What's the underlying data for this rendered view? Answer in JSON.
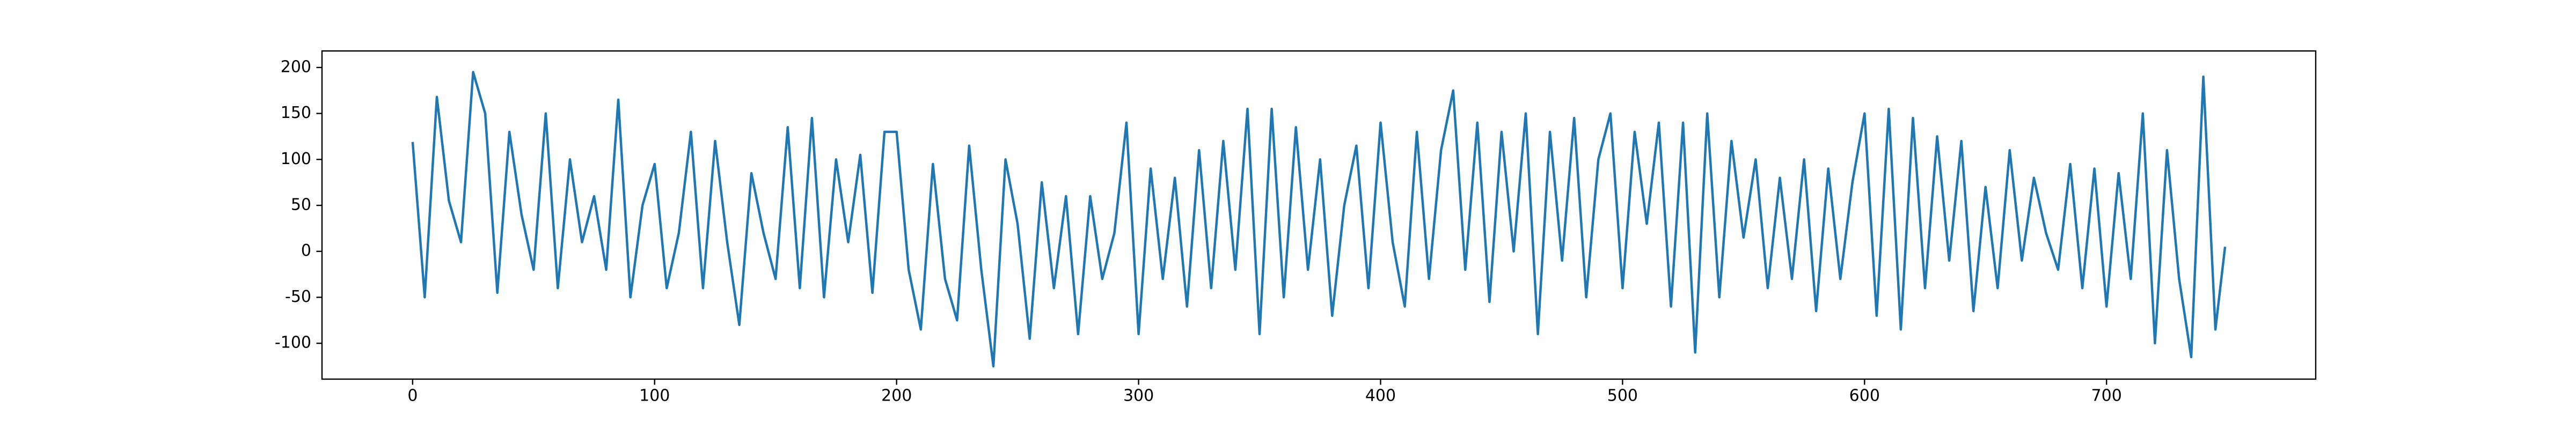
{
  "chart_data": {
    "type": "line",
    "color": "#1f77b4",
    "x": [
      0,
      5,
      10,
      15,
      20,
      25,
      30,
      35,
      40,
      45,
      50,
      55,
      60,
      65,
      70,
      75,
      80,
      85,
      90,
      95,
      100,
      105,
      110,
      115,
      120,
      125,
      130,
      135,
      140,
      145,
      150,
      155,
      160,
      165,
      170,
      175,
      180,
      185,
      190,
      195,
      200,
      205,
      210,
      215,
      220,
      225,
      230,
      235,
      240,
      245,
      250,
      255,
      260,
      265,
      270,
      275,
      280,
      285,
      290,
      295,
      300,
      305,
      310,
      315,
      320,
      325,
      330,
      335,
      340,
      345,
      350,
      355,
      360,
      365,
      370,
      375,
      380,
      385,
      390,
      395,
      400,
      405,
      410,
      415,
      420,
      425,
      430,
      435,
      440,
      445,
      450,
      455,
      460,
      465,
      470,
      475,
      480,
      485,
      490,
      495,
      500,
      505,
      510,
      515,
      520,
      525,
      530,
      535,
      540,
      545,
      550,
      555,
      560,
      565,
      570,
      575,
      580,
      585,
      590,
      595,
      600,
      605,
      610,
      615,
      620,
      625,
      630,
      635,
      640,
      645,
      650,
      655,
      660,
      665,
      670,
      675,
      680,
      685,
      690,
      695,
      700,
      705,
      710,
      715,
      720,
      725,
      730,
      735,
      740,
      745,
      749
    ],
    "values": [
      119,
      -50,
      168,
      55,
      10,
      195,
      150,
      -45,
      130,
      40,
      -20,
      150,
      -40,
      100,
      10,
      60,
      -20,
      165,
      -50,
      50,
      95,
      -40,
      20,
      130,
      -40,
      120,
      10,
      -80,
      85,
      20,
      -30,
      135,
      -40,
      145,
      -50,
      100,
      10,
      105,
      -45,
      130,
      130,
      -20,
      -85,
      95,
      -30,
      -75,
      115,
      -20,
      -125,
      100,
      30,
      -95,
      75,
      -40,
      60,
      -90,
      60,
      -30,
      20,
      140,
      -90,
      90,
      -30,
      80,
      -60,
      110,
      -40,
      120,
      -20,
      155,
      -90,
      155,
      -50,
      135,
      -20,
      100,
      -70,
      50,
      115,
      -40,
      140,
      10,
      -60,
      130,
      -30,
      110,
      175,
      -20,
      140,
      -55,
      130,
      0,
      150,
      -90,
      130,
      -10,
      145,
      -50,
      100,
      150,
      -40,
      130,
      30,
      140,
      -60,
      140,
      -110,
      150,
      -50,
      120,
      15,
      100,
      -40,
      80,
      -30,
      100,
      -65,
      90,
      -30,
      75,
      150,
      -70,
      155,
      -85,
      145,
      -40,
      125,
      -10,
      120,
      -65,
      70,
      -40,
      110,
      -10,
      80,
      20,
      -20,
      95,
      -40,
      90,
      -60,
      85,
      -30,
      150,
      -100,
      110,
      -30,
      -115,
      190,
      -85,
      5
    ],
    "xlim": [
      -37.45,
      786.45
    ],
    "ylim": [
      -139,
      218
    ],
    "xticks": [
      0,
      100,
      200,
      300,
      400,
      500,
      600,
      700
    ],
    "yticks": [
      -100,
      -50,
      0,
      50,
      100,
      150,
      200
    ]
  }
}
